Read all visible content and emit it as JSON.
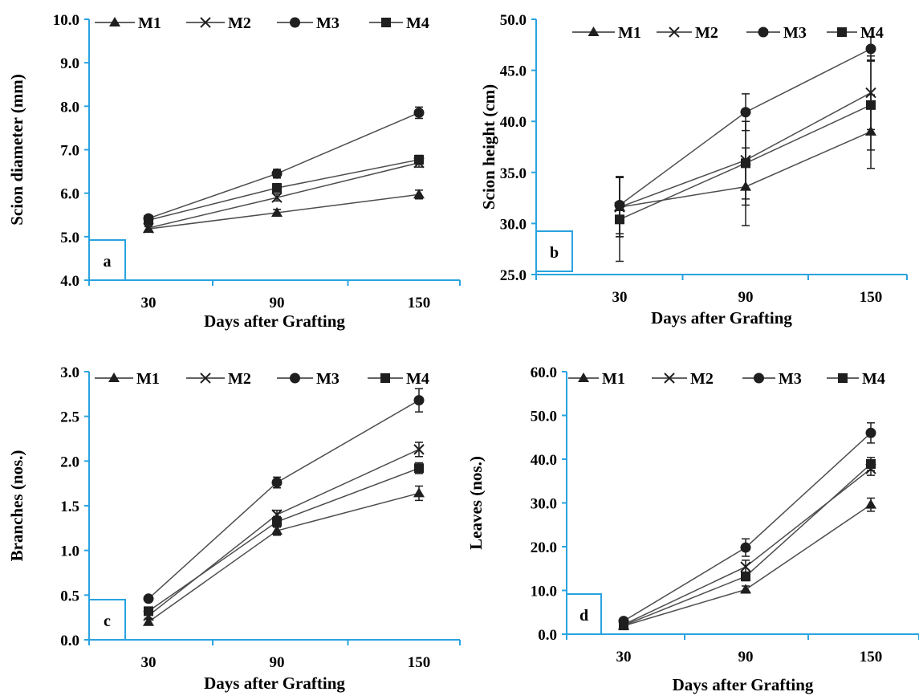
{
  "colors": {
    "axis": "#29a3e0",
    "series_line": "#4d4d4d",
    "marker": "#1f1f1f",
    "letter_box": "#29a3e0"
  },
  "chart_data": [
    {
      "type": "line",
      "panel_label": "a",
      "x": [
        "30",
        "90",
        "150"
      ],
      "xlabel": "Days after Grafting",
      "ylabel": "Scion diameter (mm)",
      "ylim": [
        4.0,
        10.0
      ],
      "yticks": [
        "4.0",
        "5.0",
        "6.0",
        "7.0",
        "8.0",
        "9.0",
        "10.0"
      ],
      "legend": "top",
      "grid": false,
      "series": [
        {
          "name": "M1",
          "marker": "triangle",
          "values": [
            5.18,
            5.55,
            5.97
          ],
          "errors": [
            0.05,
            0.08,
            0.1
          ]
        },
        {
          "name": "M2",
          "marker": "x",
          "values": [
            5.2,
            5.9,
            6.7
          ],
          "errors": [
            0.05,
            0.08,
            0.1
          ]
        },
        {
          "name": "M3",
          "marker": "circle",
          "values": [
            5.42,
            6.45,
            7.85
          ],
          "errors": [
            0.05,
            0.1,
            0.13
          ]
        },
        {
          "name": "M4",
          "marker": "square",
          "values": [
            5.38,
            6.12,
            6.77
          ],
          "errors": [
            0.05,
            0.1,
            0.1
          ]
        }
      ]
    },
    {
      "type": "line",
      "panel_label": "b",
      "x": [
        "30",
        "90",
        "150"
      ],
      "xlabel": "Days after Grafting",
      "ylabel": "Scion height (cm)",
      "ylim": [
        25.0,
        50.0
      ],
      "yticks": [
        "25.0",
        "30.0",
        "35.0",
        "40.0",
        "45.0",
        "50.0"
      ],
      "legend": "top",
      "grid": false,
      "series": [
        {
          "name": "M1",
          "marker": "triangle",
          "values": [
            31.6,
            33.6,
            39.0
          ],
          "errors": [
            2.9,
            3.8,
            3.6
          ]
        },
        {
          "name": "M2",
          "marker": "x",
          "values": [
            31.6,
            36.2,
            42.8
          ],
          "errors": [
            2.9,
            3.8,
            3.6
          ]
        },
        {
          "name": "M3",
          "marker": "circle",
          "values": [
            31.8,
            40.9,
            47.1
          ],
          "errors": [
            2.8,
            1.8,
            1.2
          ]
        },
        {
          "name": "M4",
          "marker": "square",
          "values": [
            30.4,
            35.9,
            41.6
          ],
          "errors": [
            4.1,
            4.1,
            4.4
          ]
        }
      ]
    },
    {
      "type": "line",
      "panel_label": "c",
      "x": [
        "30",
        "90",
        "150"
      ],
      "xlabel": "Days after Grafting",
      "ylabel": "Branches (nos.)",
      "ylim": [
        0.0,
        3.0
      ],
      "yticks": [
        "0.0",
        "0.5",
        "1.0",
        "1.5",
        "2.0",
        "2.5",
        "3.0"
      ],
      "legend": "top",
      "grid": false,
      "series": [
        {
          "name": "M1",
          "marker": "triangle",
          "values": [
            0.2,
            1.22,
            1.64
          ],
          "errors": [
            0.03,
            0.05,
            0.08
          ]
        },
        {
          "name": "M2",
          "marker": "x",
          "values": [
            0.27,
            1.4,
            2.13
          ],
          "errors": [
            0.03,
            0.05,
            0.08
          ]
        },
        {
          "name": "M3",
          "marker": "circle",
          "values": [
            0.46,
            1.76,
            2.68
          ],
          "errors": [
            0.03,
            0.06,
            0.13
          ]
        },
        {
          "name": "M4",
          "marker": "square",
          "values": [
            0.32,
            1.32,
            1.92
          ],
          "errors": [
            0.03,
            0.06,
            0.06
          ]
        }
      ]
    },
    {
      "type": "line",
      "panel_label": "d",
      "x": [
        "30",
        "90",
        "150"
      ],
      "xlabel": "Days after Grafting",
      "ylabel": "Leaves (nos.)",
      "ylim": [
        0.0,
        60.0
      ],
      "yticks": [
        "0.0",
        "10.0",
        "20.0",
        "30.0",
        "40.0",
        "50.0",
        "60.0"
      ],
      "legend": "top",
      "grid": false,
      "series": [
        {
          "name": "M1",
          "marker": "triangle",
          "values": [
            1.9,
            10.2,
            29.6
          ],
          "errors": [
            0.3,
            0.8,
            1.5
          ]
        },
        {
          "name": "M2",
          "marker": "x",
          "values": [
            2.2,
            15.4,
            37.8
          ],
          "errors": [
            0.3,
            1.5,
            1.5
          ]
        },
        {
          "name": "M3",
          "marker": "circle",
          "values": [
            3.0,
            19.8,
            46.0
          ],
          "errors": [
            0.3,
            2.0,
            2.3
          ]
        },
        {
          "name": "M4",
          "marker": "square",
          "values": [
            2.0,
            13.2,
            38.9
          ],
          "errors": [
            0.3,
            1.0,
            1.5
          ]
        }
      ]
    }
  ]
}
